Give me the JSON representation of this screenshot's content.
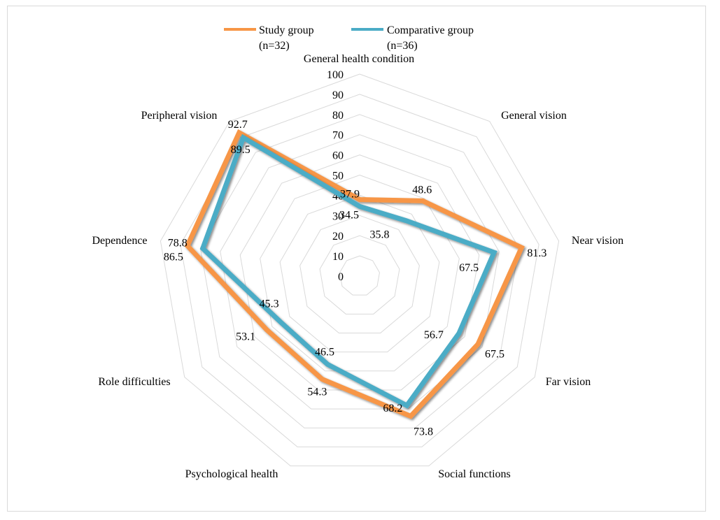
{
  "chart_data": {
    "type": "radar",
    "title": "",
    "categories": [
      "General health condition",
      "General vision",
      "Near vision",
      "Far vision",
      "Social functions",
      "Psychological health",
      "Role difficulties",
      "Dependence",
      "Peripheral vision"
    ],
    "series": [
      {
        "name": "Study group (n=32)",
        "legend_lines": [
          "Study group",
          "(n=32)"
        ],
        "color": "#F79646",
        "values": [
          37.9,
          48.6,
          81.3,
          67.5,
          73.8,
          54.3,
          53.1,
          86.5,
          92.7
        ],
        "labels": [
          "37.9",
          "48.6",
          "81.3",
          "67.5",
          "73.8",
          "54.3",
          "53.1",
          "86.5",
          "92.7"
        ]
      },
      {
        "name": "Comparative group (n=36)",
        "legend_lines": [
          "Comparative group",
          "(n=36)"
        ],
        "color": "#4BACC6",
        "values": [
          34.5,
          35.8,
          67.5,
          56.7,
          68.2,
          46.5,
          45.3,
          78.8,
          89.5
        ],
        "labels": [
          "34.5",
          "35.8",
          "67.5",
          "56.7",
          "68.2",
          "46.5",
          "45.3",
          "78.8",
          "89.5"
        ]
      }
    ],
    "radial_axis": {
      "min": 0,
      "max": 100,
      "step": 10,
      "tick_labels": [
        "0",
        "10",
        "20",
        "30",
        "40",
        "50",
        "60",
        "70",
        "80",
        "90",
        "100"
      ]
    },
    "grid": true,
    "gridline_color": "#D9D9D9",
    "legend_position": "top"
  }
}
